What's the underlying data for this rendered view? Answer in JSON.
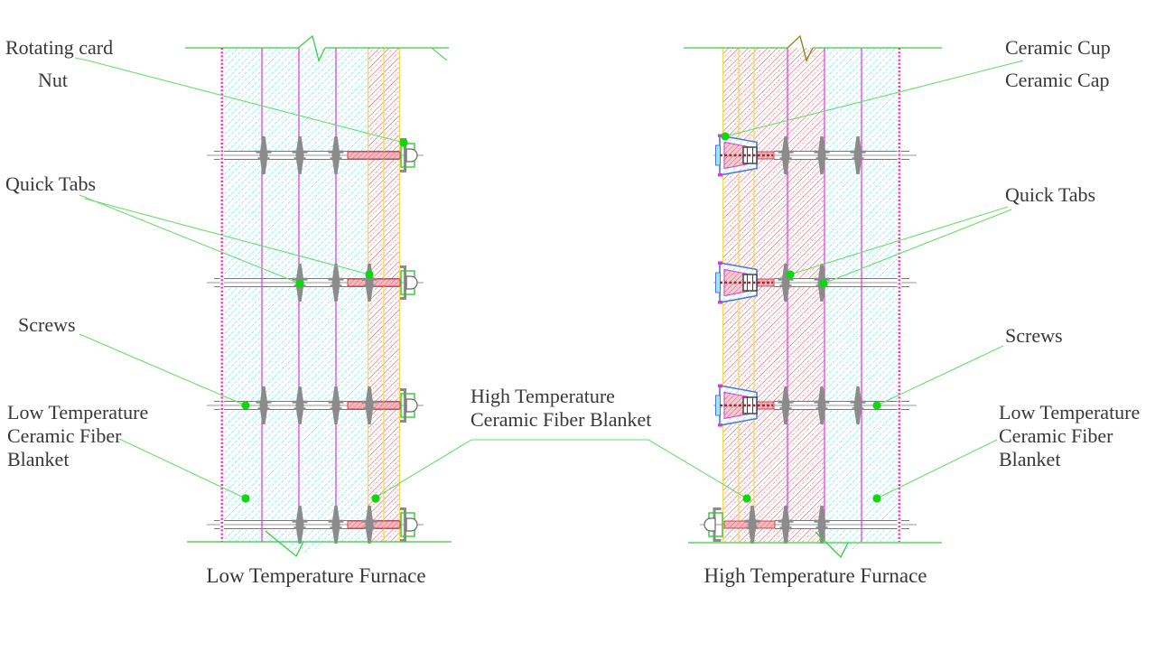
{
  "diagram": {
    "left": {
      "caption": "Low Temperature Furnace",
      "labels": {
        "rotating_card": "Rotating card",
        "nut": "Nut",
        "quick_tabs": "Quick Tabs",
        "screws": "Screws",
        "blanket_line1": "Low Temperature",
        "blanket_line2": "Ceramic Fiber",
        "blanket_line3": "Blanket"
      }
    },
    "center": {
      "ht_blanket_line1": "High Temperature",
      "ht_blanket_line2": "Ceramic Fiber Blanket"
    },
    "right": {
      "caption": "High Temperature Furnace",
      "labels": {
        "ceramic_cup": "Ceramic Cup",
        "ceramic_cap": "Ceramic Cap",
        "quick_tabs": "Quick Tabs",
        "screws": "Screws",
        "blanket_line1": "Low Temperature",
        "blanket_line2": "Ceramic Fiber",
        "blanket_line3": "Blanket"
      }
    }
  },
  "colors": {
    "leader_green": "#67de67",
    "edge_green": "#3ecc3e",
    "dot_green": "#0fd60f",
    "hatch_cyan": "#2bd7ea",
    "hatch_red": "#e84a5e",
    "hatch_red_light": "#f5a3b0",
    "separator_magenta": "#e531e5",
    "separator_yellow": "#f2dc52",
    "edge_pink": "#ff2fa8",
    "metal_gray": "#8b8b8b",
    "rod_outline": "#777777",
    "centerline_gray": "#979797",
    "thread_fill": "#f4b8bc",
    "thread_edge": "#cc3848",
    "cup_blue": "#5070e8",
    "cup_lip_fill": "#9fe6f2",
    "cup_inner_fill": "#f6cdd2",
    "shank_dark_red": "#a02535",
    "nut_green": "#2ecc2e",
    "break_olive": "#8a8a20",
    "text": "#383838"
  }
}
